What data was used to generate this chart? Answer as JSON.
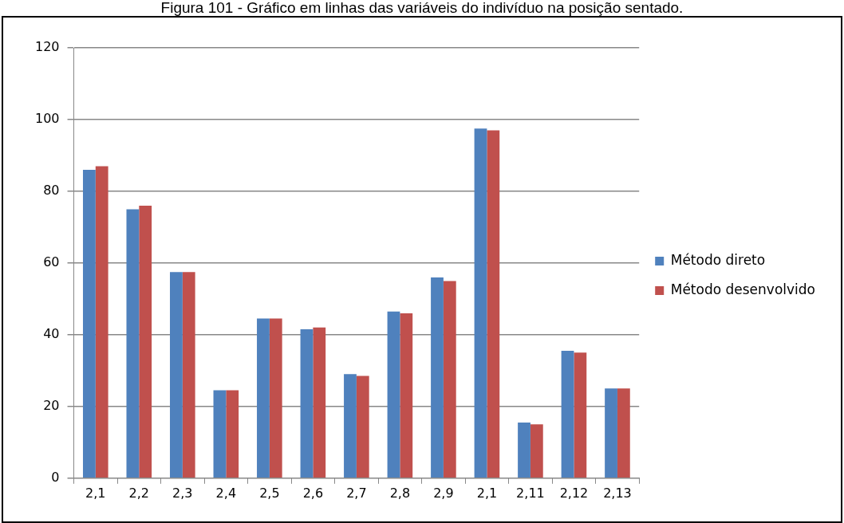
{
  "chart_data": {
    "type": "bar",
    "title": "Figura 101 - Gráfico em linhas das variáveis do indivíduo na posição sentado.",
    "categories": [
      "2,1",
      "2,2",
      "2,3",
      "2,4",
      "2,5",
      "2,6",
      "2,7",
      "2,8",
      "2,9",
      "2,1",
      "2,11",
      "2,12",
      "2,13"
    ],
    "series": [
      {
        "name": "Método direto",
        "color": "#4f81bd",
        "values": [
          86,
          75,
          57.5,
          24.5,
          44.5,
          41.5,
          29,
          46.5,
          56,
          97.5,
          15.5,
          35.5,
          25
        ]
      },
      {
        "name": "Método desenvolvido",
        "color": "#c0504d",
        "values": [
          87,
          76,
          57.5,
          24.5,
          44.5,
          42,
          28.5,
          46,
          55,
          97,
          15,
          35,
          25
        ]
      }
    ],
    "ylim": [
      0,
      120
    ],
    "yticks": [
      0,
      20,
      40,
      60,
      80,
      100,
      120
    ],
    "grid": "y",
    "legend": "right"
  }
}
